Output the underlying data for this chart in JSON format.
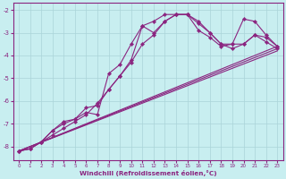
{
  "xlabel": "Windchill (Refroidissement éolien,°C)",
  "background_color": "#c8eef0",
  "line_color": "#8b2580",
  "grid_color": "#aad4d8",
  "xlim": [
    -0.5,
    23.5
  ],
  "ylim": [
    -8.6,
    -1.7
  ],
  "yticks": [
    -8,
    -7,
    -6,
    -5,
    -4,
    -3,
    -2
  ],
  "xticks": [
    0,
    1,
    2,
    3,
    4,
    5,
    6,
    7,
    8,
    9,
    10,
    11,
    12,
    13,
    14,
    15,
    16,
    17,
    18,
    19,
    20,
    21,
    22,
    23
  ],
  "series": [
    {
      "x": [
        0,
        1,
        2,
        3,
        4,
        5,
        6,
        7,
        8,
        9,
        10,
        11,
        12,
        13,
        14,
        15,
        16,
        17,
        18,
        19,
        20,
        21,
        22,
        23
      ],
      "y": [
        -8.2,
        -8.1,
        -7.8,
        -7.3,
        -7.0,
        -6.8,
        -6.3,
        -6.2,
        -5.5,
        -4.9,
        -4.2,
        -2.7,
        -2.5,
        -2.2,
        -2.2,
        -2.2,
        -2.6,
        -3.0,
        -3.5,
        -3.5,
        -2.4,
        -2.5,
        -3.1,
        -3.6
      ],
      "has_markers": true
    },
    {
      "x": [
        0,
        1,
        2,
        3,
        4,
        5,
        6,
        7,
        8,
        9,
        10,
        11,
        12,
        13,
        14,
        15,
        16,
        17,
        18,
        19,
        20,
        21,
        22,
        23
      ],
      "y": [
        -8.2,
        -8.1,
        -7.8,
        -7.5,
        -7.2,
        -6.9,
        -6.6,
        -6.1,
        -5.5,
        -4.9,
        -4.3,
        -3.5,
        -3.1,
        -2.5,
        -2.2,
        -2.2,
        -2.5,
        -3.0,
        -3.5,
        -3.7,
        -3.5,
        -3.1,
        -3.4,
        -3.7
      ],
      "has_markers": true
    },
    {
      "x": [
        0,
        1,
        2,
        3,
        4,
        5,
        6,
        7,
        8,
        9,
        10,
        11,
        12,
        13,
        14,
        15,
        16,
        17,
        18,
        19,
        20,
        21,
        22,
        23
      ],
      "y": [
        -8.2,
        -8.1,
        -7.8,
        -7.3,
        -6.9,
        -6.8,
        -6.5,
        -6.6,
        -4.8,
        -4.4,
        -3.5,
        -2.7,
        -3.0,
        -2.5,
        -2.2,
        -2.2,
        -2.9,
        -3.2,
        -3.6,
        -3.5,
        -3.5,
        -3.1,
        -3.2,
        -3.6
      ],
      "has_markers": true
    },
    {
      "x": [
        0,
        23
      ],
      "y": [
        -8.2,
        -3.6
      ],
      "has_markers": false
    },
    {
      "x": [
        0,
        23
      ],
      "y": [
        -8.2,
        -3.7
      ],
      "has_markers": false
    },
    {
      "x": [
        0,
        23
      ],
      "y": [
        -8.2,
        -3.8
      ],
      "has_markers": false
    }
  ]
}
